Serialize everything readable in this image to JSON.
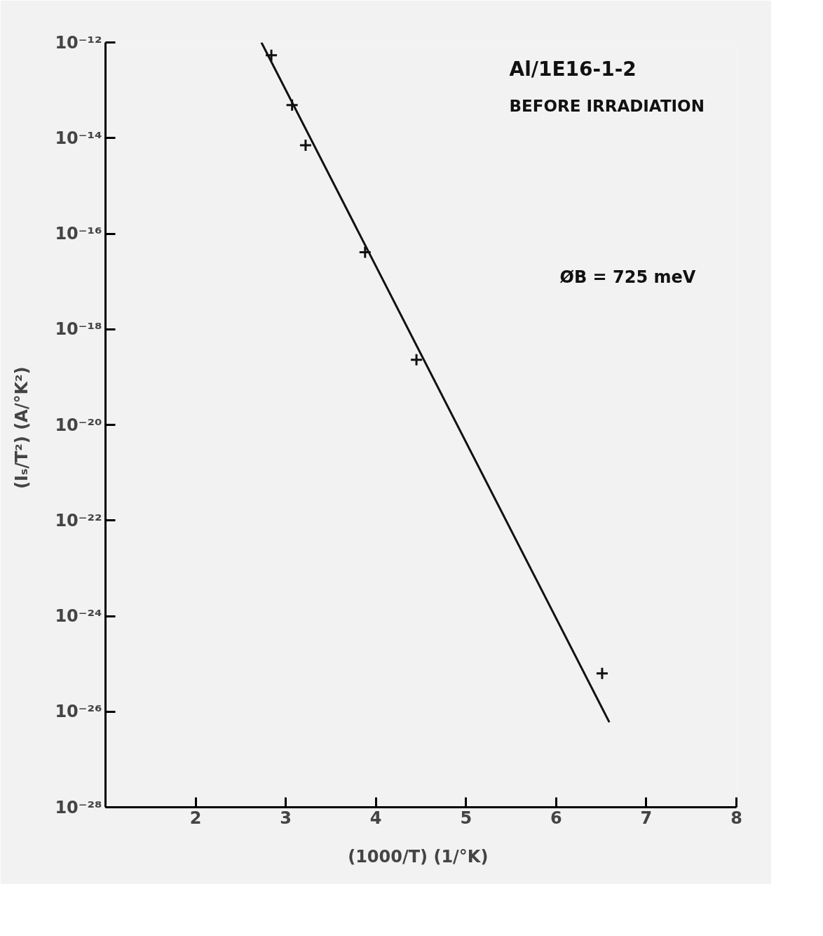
{
  "chart_data": {
    "type": "scatter",
    "xlabel": "(1000/T)  (1/°K)",
    "ylabel": "(Iₛ/T²)  (A/°K²)",
    "annotations": [
      "Al/1E16-1-2",
      "BEFORE  IRRADIATION",
      "ØB = 725 meV"
    ],
    "series": [
      {
        "marker": "cross",
        "color": "#111111",
        "x": [
          2.84,
          3.07,
          3.22,
          3.88,
          4.45,
          6.51
        ],
        "values": [
          5.4e-13,
          4.9e-14,
          7.1e-15,
          4.1e-17,
          2.3e-19,
          6.3e-26
        ]
      },
      {
        "type": "line",
        "marker": "none",
        "line_style": "solid",
        "color": "#111111",
        "x": [
          2.73,
          6.59
        ],
        "values": [
          1e-12,
          6e-27
        ]
      }
    ],
    "log": "y",
    "grid": false,
    "xlim": [
      1,
      8
    ],
    "xticks": [
      2,
      3,
      4,
      5,
      6,
      7,
      8
    ],
    "ylim": [
      1e-28,
      1e-12
    ],
    "yticks": [
      {
        "value": 1e-28,
        "label": "10⁻²⁸"
      },
      {
        "value": 1e-26,
        "label": "10⁻²⁶"
      },
      {
        "value": 1e-24,
        "label": "10⁻²⁴"
      },
      {
        "value": 1e-22,
        "label": "10⁻²²"
      },
      {
        "value": 1e-20,
        "label": "10⁻²⁰"
      },
      {
        "value": 1e-18,
        "label": "10⁻¹⁸"
      },
      {
        "value": 1e-16,
        "label": "10⁻¹⁶"
      },
      {
        "value": 1e-14,
        "label": "10⁻¹⁴"
      },
      {
        "value": 1e-12,
        "label": "10⁻¹²"
      }
    ]
  }
}
